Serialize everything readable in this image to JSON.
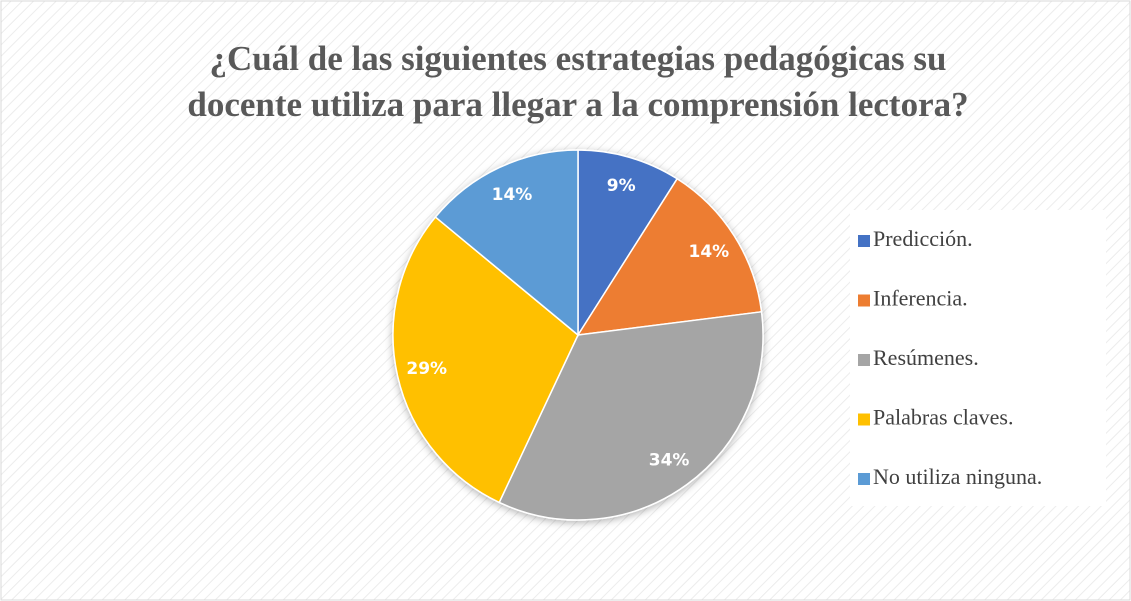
{
  "chart_data": {
    "type": "pie",
    "title": "¿Cuál de las siguientes estrategias pedagógicas su docente utiliza para llegar a la comprensión lectora?",
    "title_lines": [
      "¿Cuál de las siguientes estrategias pedagógicas su",
      "docente utiliza para llegar a la comprensión lectora?"
    ],
    "categories": [
      "Predicción.",
      "Inferencia.",
      "Resúmenes.",
      "Palabras claves.",
      "No utiliza ninguna."
    ],
    "values": [
      9,
      14,
      34,
      29,
      14
    ],
    "value_labels": [
      "9%",
      "14%",
      "34%",
      "29%",
      "14%"
    ],
    "colors": [
      "#4472c4",
      "#ed7d31",
      "#a5a5a5",
      "#ffc000",
      "#5b9bd5"
    ],
    "legend": "right"
  }
}
